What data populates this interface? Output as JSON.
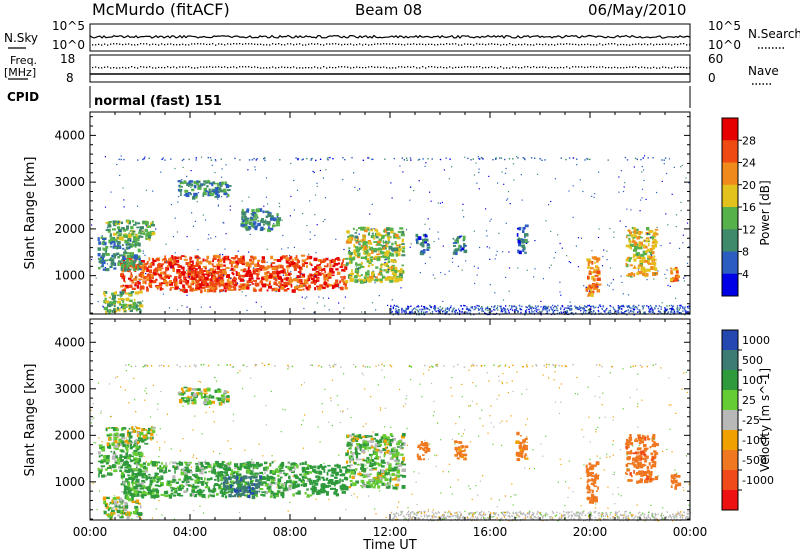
{
  "header": {
    "station": "McMurdo (fitACF)",
    "beam": "Beam 08",
    "date": "06/May/2010",
    "mode": "normal (fast) 151"
  },
  "aux_panels": {
    "nsky_label": "N.Sky",
    "nsky_tick_top": "10^5",
    "nsky_tick_bottom": "10^0",
    "nsearch_label": "N.Search",
    "nsearch_tick_top": "10^5",
    "nsearch_tick_bottom": "10^0",
    "freq_label": "Freq.",
    "freq_unit": "[MHz]",
    "freq_tick_top": "18",
    "freq_tick_bottom": "8",
    "nave_label": "Nave",
    "nave_tick_top": "60",
    "nave_tick_bottom": "0",
    "cpid_label": "CPID"
  },
  "chart_data": [
    {
      "type": "heatmap",
      "panel": "power",
      "ylabel": "Slant Range [km]",
      "xlabel": "",
      "ylim": [
        180,
        4500
      ],
      "yticks": [
        1000,
        2000,
        3000,
        4000
      ],
      "xlim_hours": [
        0,
        24
      ],
      "colorbar": {
        "label": "Power [dB]",
        "ticks": [
          "4",
          "8",
          "12",
          "16",
          "20",
          "24",
          "28"
        ],
        "range": [
          0,
          32
        ],
        "colors": [
          "#0000e6",
          "#2b5cc0",
          "#3f8a6a",
          "#56b14a",
          "#e3c21e",
          "#f08a1c",
          "#ee4a12",
          "#e60000"
        ]
      },
      "regions": [
        {
          "t": [
            1.2,
            8.8
          ],
          "r": [
            700,
            1450
          ],
          "value": 26
        },
        {
          "t": [
            3.9,
            5.2
          ],
          "r": [
            750,
            1150
          ],
          "value": 27
        },
        {
          "t": [
            8.8,
            10.2
          ],
          "r": [
            750,
            1400
          ],
          "value": 27
        },
        {
          "t": [
            10.2,
            12.5
          ],
          "r": [
            900,
            2050
          ],
          "value": 16
        },
        {
          "t": [
            0.3,
            2.0
          ],
          "r": [
            1150,
            1850
          ],
          "value": 11
        },
        {
          "t": [
            0.6,
            2.5
          ],
          "r": [
            1800,
            2200
          ],
          "value": 13
        },
        {
          "t": [
            0.5,
            2.0
          ],
          "r": [
            250,
            700
          ],
          "value": 14
        },
        {
          "t": [
            3.5,
            5.5
          ],
          "r": [
            2700,
            3050
          ],
          "value": 10
        },
        {
          "t": [
            6.0,
            7.5
          ],
          "r": [
            2000,
            2450
          ],
          "value": 10
        },
        {
          "t": [
            19.8,
            20.3
          ],
          "r": [
            600,
            1450
          ],
          "value": 22
        },
        {
          "t": [
            21.4,
            22.6
          ],
          "r": [
            1000,
            2050
          ],
          "value": 18
        },
        {
          "t": [
            23.2,
            23.5
          ],
          "r": [
            900,
            1200
          ],
          "value": 22
        },
        {
          "t": [
            13.0,
            13.5
          ],
          "r": [
            1500,
            1900
          ],
          "value": 8
        },
        {
          "t": [
            14.5,
            15.0
          ],
          "r": [
            1500,
            1900
          ],
          "value": 8
        },
        {
          "t": [
            17.0,
            17.4
          ],
          "r": [
            1500,
            2100
          ],
          "value": 8
        }
      ]
    },
    {
      "type": "heatmap",
      "panel": "velocity",
      "ylabel": "Slant Range [km]",
      "xlabel": "Time UT",
      "ylim": [
        180,
        4500
      ],
      "yticks": [
        1000,
        2000,
        3000,
        4000
      ],
      "xlim_hours": [
        0,
        24
      ],
      "xticks": [
        "00:00",
        "04:00",
        "08:00",
        "12:00",
        "16:00",
        "20:00",
        "00:00"
      ],
      "colorbar": {
        "label": "Velocity [m s^-1]",
        "ticks": [
          "1000",
          "500",
          "100",
          "25",
          "-25",
          "-100",
          "-500",
          "-1000"
        ],
        "colors": [
          "#2448b0",
          "#3c7c74",
          "#2f9a3c",
          "#66cc33",
          "#b8b8b8",
          "#f0a000",
          "#ef7820",
          "#f04a1a",
          "#ee1111"
        ]
      },
      "regions": [
        {
          "t": [
            1.2,
            8.8
          ],
          "r": [
            700,
            1450
          ],
          "value": 150
        },
        {
          "t": [
            5.3,
            6.8
          ],
          "r": [
            700,
            1150
          ],
          "value": 900
        },
        {
          "t": [
            8.8,
            10.2
          ],
          "r": [
            750,
            1400
          ],
          "value": 300
        },
        {
          "t": [
            10.2,
            12.5
          ],
          "r": [
            900,
            2050
          ],
          "value": 80
        },
        {
          "t": [
            0.3,
            2.0
          ],
          "r": [
            1150,
            1850
          ],
          "value": 150
        },
        {
          "t": [
            0.6,
            2.5
          ],
          "r": [
            1800,
            2200
          ],
          "value": 60
        },
        {
          "t": [
            0.5,
            2.0
          ],
          "r": [
            250,
            700
          ],
          "value": 60
        },
        {
          "t": [
            3.5,
            5.5
          ],
          "r": [
            2700,
            3050
          ],
          "value": 60
        },
        {
          "t": [
            19.8,
            20.3
          ],
          "r": [
            600,
            1450
          ],
          "value": -300
        },
        {
          "t": [
            21.4,
            22.6
          ],
          "r": [
            1000,
            2050
          ],
          "value": -400
        },
        {
          "t": [
            23.2,
            23.5
          ],
          "r": [
            900,
            1200
          ],
          "value": -300
        },
        {
          "t": [
            13.0,
            13.5
          ],
          "r": [
            1500,
            1900
          ],
          "value": -300
        },
        {
          "t": [
            14.5,
            15.0
          ],
          "r": [
            1500,
            1900
          ],
          "value": -200
        },
        {
          "t": [
            17.0,
            17.4
          ],
          "r": [
            1500,
            2100
          ],
          "value": -200
        }
      ]
    }
  ]
}
